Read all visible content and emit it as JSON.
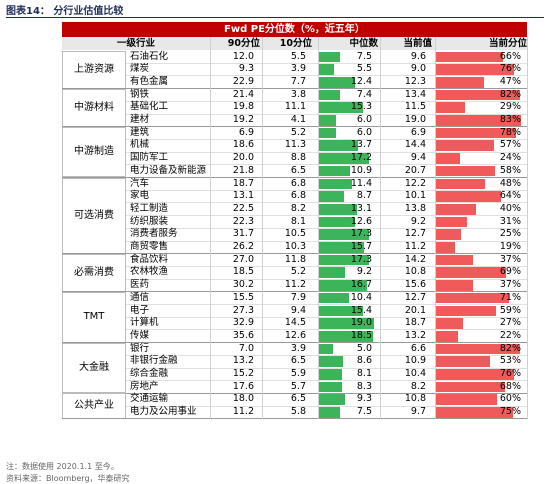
{
  "header": {
    "title": "图表14：  分行业估值比较"
  },
  "table": {
    "caption": "Fwd PE分位数（%，近五年）",
    "columns": [
      "一级行业",
      "90分位",
      "10分位",
      "中位数",
      "当前值",
      "当前分位"
    ],
    "groups": [
      {
        "name": "上游资源",
        "rows": [
          [
            "石油石化",
            "12.0",
            "5.5",
            "7.5",
            "9.6",
            "66%"
          ],
          [
            "煤炭",
            "9.3",
            "3.9",
            "5.5",
            "9.0",
            "76%"
          ],
          [
            "有色金属",
            "22.9",
            "7.7",
            "12.4",
            "12.3",
            "47%"
          ]
        ]
      },
      {
        "name": "中游材料",
        "rows": [
          [
            "钢铁",
            "21.4",
            "3.8",
            "7.4",
            "13.4",
            "82%"
          ],
          [
            "基础化工",
            "19.8",
            "11.1",
            "15.3",
            "11.5",
            "29%"
          ],
          [
            "建材",
            "19.2",
            "4.1",
            "6.0",
            "19.0",
            "83%"
          ]
        ]
      },
      {
        "name": "中游制造",
        "rows": [
          [
            "建筑",
            "6.9",
            "5.2",
            "6.0",
            "6.9",
            "78%"
          ],
          [
            "机械",
            "18.6",
            "11.3",
            "13.7",
            "14.4",
            "57%"
          ],
          [
            "国防军工",
            "20.0",
            "8.8",
            "17.2",
            "9.4",
            "24%"
          ],
          [
            "电力设备及新能源",
            "21.8",
            "6.5",
            "10.9",
            "20.7",
            "58%"
          ]
        ]
      },
      {
        "name": "可选消费",
        "rows": [
          [
            "汽车",
            "18.7",
            "6.8",
            "11.4",
            "12.2",
            "48%"
          ],
          [
            "家电",
            "13.1",
            "6.8",
            "8.7",
            "10.1",
            "64%"
          ],
          [
            "轻工制造",
            "22.5",
            "8.2",
            "13.1",
            "13.8",
            "40%"
          ],
          [
            "纺织服装",
            "22.3",
            "8.1",
            "12.6",
            "9.2",
            "31%"
          ],
          [
            "消费者服务",
            "31.7",
            "10.5",
            "17.3",
            "12.7",
            "25%"
          ],
          [
            "商贸零售",
            "26.2",
            "10.3",
            "15.7",
            "11.2",
            "19%"
          ]
        ]
      },
      {
        "name": "必需消费",
        "rows": [
          [
            "食品饮料",
            "27.0",
            "11.8",
            "17.3",
            "14.2",
            "37%"
          ],
          [
            "农林牧渔",
            "18.5",
            "5.2",
            "9.2",
            "10.8",
            "69%"
          ],
          [
            "医药",
            "30.2",
            "11.2",
            "16.7",
            "15.6",
            "37%"
          ]
        ]
      },
      {
        "name": "TMT",
        "rows": [
          [
            "通信",
            "15.5",
            "7.9",
            "10.4",
            "12.7",
            "71%"
          ],
          [
            "电子",
            "27.3",
            "9.4",
            "15.4",
            "20.1",
            "59%"
          ],
          [
            "计算机",
            "32.9",
            "14.5",
            "19.0",
            "18.7",
            "27%"
          ],
          [
            "传媒",
            "35.6",
            "12.6",
            "18.5",
            "13.2",
            "22%"
          ]
        ]
      },
      {
        "name": "大金融",
        "rows": [
          [
            "银行",
            "7.0",
            "3.9",
            "5.0",
            "6.6",
            "82%"
          ],
          [
            "非银行金融",
            "13.2",
            "6.5",
            "8.6",
            "10.9",
            "53%"
          ],
          [
            "综合金融",
            "15.2",
            "5.9",
            "8.1",
            "10.4",
            "76%"
          ],
          [
            "房地产",
            "17.6",
            "5.7",
            "8.3",
            "8.2",
            "68%"
          ]
        ]
      },
      {
        "name": "公共产业",
        "rows": [
          [
            "交通运输",
            "18.0",
            "6.5",
            "9.3",
            "10.8",
            "60%"
          ],
          [
            "电力及公用事业",
            "11.2",
            "5.8",
            "7.5",
            "9.7",
            "75%"
          ]
        ]
      }
    ]
  },
  "notes": [
    "注：数据使用 2020.1.1 至今。",
    "资料来源：Bloomberg，华泰研究"
  ]
}
